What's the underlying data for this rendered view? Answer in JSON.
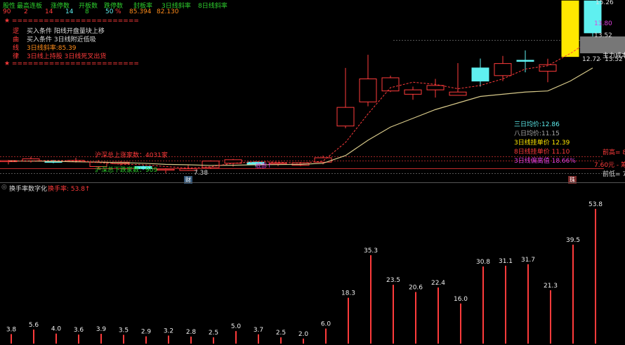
{
  "colors": {
    "red": "#ff3b3b",
    "green": "#2ecf2e",
    "cyan": "#5ff0f0",
    "yellow": "#ffe800",
    "magenta": "#e040e0",
    "orange": "#ff8c1a",
    "gold": "#d7c98a",
    "white": "#eeeeee",
    "gray": "#888888"
  },
  "header": {
    "labels": [
      "股性",
      "最高连板",
      "涨停数",
      "开板数",
      "跌停数",
      "封板率",
      "3日线斜率",
      "8日线斜率"
    ],
    "values": [
      "90",
      "2",
      "14",
      "14",
      "8",
      "50",
      "85.394",
      "82.130"
    ],
    "percent_sign": "%"
  },
  "signal_panel": {
    "border_top": "★ ========================",
    "border_bottom": "★ ========================",
    "rows": [
      {
        "tag": "逻",
        "text": "买入条件 阳线开盘量块上移"
      },
      {
        "tag": "曲",
        "text": "买入条件 3日线附近低吸"
      },
      {
        "tag": "线",
        "text": "3日线斜率:85.39"
      },
      {
        "tag": "律",
        "text": "3日线上持股 3日线死叉出货"
      }
    ]
  },
  "price_labels": {
    "top_high": "15.26",
    "top_mid": "13.80",
    "top_low": "13.52",
    "current": "12.72",
    "current_sep": "-",
    "current_right": "13.52",
    "main_force": "主力成本",
    "low_point": "7.38",
    "prev_high": "前高= 8",
    "prev_low": "前低= 7",
    "cost_line": "7.60元 - 筹"
  },
  "averages": {
    "three_day": "三日均价:12.86",
    "eight_day": "八日均价:11.15",
    "three_day_buy": "3日线挂单价 12.39",
    "eight_day_buy": "8日线挂单价 11.10",
    "deviation": "3日线偏离值 18.66%"
  },
  "market_counts": {
    "up": "沪深总上涨家数：4031家",
    "down": "沪深总下跌家数：909"
  },
  "markers": {
    "cai": "财",
    "zhu": "珠",
    "bottom_tag": "底部↑"
  },
  "turnover": {
    "title": "换手率数字化",
    "label": "换手率: 53.8↑",
    "values": [
      3.8,
      5.6,
      4.0,
      3.6,
      3.9,
      3.5,
      2.9,
      3.2,
      2.8,
      2.5,
      5.0,
      3.7,
      2.5,
      2.0,
      6.0,
      18.3,
      35.3,
      23.5,
      20.6,
      22.4,
      16.0,
      30.8,
      31.1,
      31.7,
      21.3,
      39.5,
      53.8
    ],
    "display": [
      "3.8",
      "5.6",
      "4.0",
      "3.6",
      "3.9",
      "3.5",
      "2.9",
      "3.2",
      "2.8",
      "2.5",
      "5.0",
      "3.7",
      "2.5",
      "2.0",
      "6.0",
      "18.3",
      "35.3",
      "23.5",
      "20.6",
      "22.4",
      "16.0",
      "30.8",
      "31.1",
      "31.7",
      "21.3",
      "39.5",
      "53.8"
    ]
  },
  "chart_data": [
    {
      "type": "candlestick",
      "x": [
        1,
        2,
        3,
        4,
        5,
        6,
        7,
        8,
        9,
        10,
        11,
        12,
        13,
        14,
        15,
        16,
        17,
        18,
        19,
        20,
        21,
        22,
        23,
        24,
        25,
        26,
        27
      ],
      "open": [
        7.95,
        7.95,
        7.94,
        7.92,
        7.7,
        7.83,
        7.7,
        7.55,
        7.52,
        7.65,
        7.85,
        7.9,
        7.82,
        7.76,
        7.9,
        9.55,
        10.65,
        11.15,
        11.0,
        11.2,
        10.95,
        12.2,
        11.85,
        12.55,
        12.05,
        12.72,
        15.26
      ],
      "close": [
        7.97,
        8.05,
        7.92,
        7.98,
        7.9,
        7.9,
        7.6,
        7.58,
        7.6,
        7.95,
        8.01,
        7.79,
        7.87,
        7.87,
        8.1,
        10.4,
        11.7,
        11.75,
        11.2,
        11.4,
        11.1,
        11.6,
        12.4,
        12.5,
        12.35,
        15.26,
        13.8
      ],
      "high": [
        8.0,
        8.15,
        8.0,
        8.1,
        8.0,
        7.95,
        7.75,
        7.63,
        7.78,
        7.98,
        8.05,
        7.93,
        7.9,
        7.91,
        8.2,
        12.2,
        12.8,
        11.85,
        11.35,
        11.7,
        12.42,
        12.63,
        12.75,
        13.0,
        12.62,
        15.26,
        15.26
      ],
      "low": [
        7.8,
        7.88,
        7.85,
        7.88,
        7.6,
        7.75,
        7.55,
        7.38,
        7.5,
        7.6,
        7.7,
        7.7,
        7.72,
        7.72,
        7.8,
        9.45,
        10.45,
        11.1,
        10.75,
        10.85,
        10.95,
        11.35,
        11.6,
        12.0,
        11.55,
        12.72,
        13.52
      ],
      "ma3": [
        7.94,
        7.96,
        7.98,
        7.96,
        7.88,
        7.81,
        7.78,
        7.7,
        7.63,
        7.69,
        7.85,
        7.92,
        7.9,
        7.85,
        7.95,
        8.8,
        10.1,
        11.3,
        11.55,
        11.45,
        11.25,
        11.4,
        11.7,
        12.15,
        12.3,
        12.86,
        13.52
      ],
      "ma8": [
        7.95,
        7.95,
        7.94,
        7.92,
        7.9,
        7.88,
        7.85,
        7.8,
        7.78,
        7.75,
        7.76,
        7.78,
        7.79,
        7.8,
        7.85,
        8.2,
        8.9,
        9.5,
        9.9,
        10.3,
        10.6,
        10.9,
        11.0,
        11.1,
        11.15,
        11.6,
        12.2
      ]
    },
    {
      "type": "bar",
      "title": "换手率数字化",
      "values": [
        3.8,
        5.6,
        4.0,
        3.6,
        3.9,
        3.5,
        2.9,
        3.2,
        2.8,
        2.5,
        5.0,
        3.7,
        2.5,
        2.0,
        6.0,
        18.3,
        35.3,
        23.5,
        20.6,
        22.4,
        16.0,
        30.8,
        31.1,
        31.7,
        21.3,
        39.5,
        53.8
      ]
    }
  ]
}
